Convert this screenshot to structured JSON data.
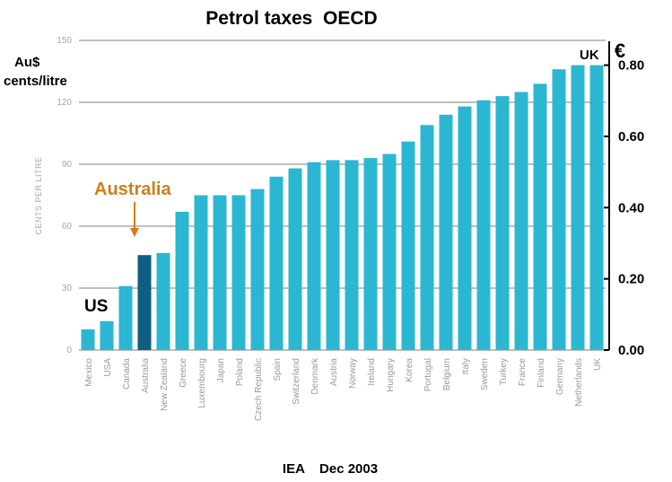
{
  "chart_data": {
    "type": "bar",
    "title": "Petrol taxes  OECD",
    "left_axis_heading": [
      "Au$",
      "cents/litre"
    ],
    "ylabel": "CENTS PER LITRE",
    "ylim": [
      0,
      150
    ],
    "yticks": [
      "0",
      "30",
      "60",
      "90",
      "120",
      "150"
    ],
    "right_axis_symbol": "€",
    "right_yticks": [
      {
        "value": 0,
        "label": "0.00"
      },
      {
        "value": 0.2,
        "label": "0.20"
      },
      {
        "value": 0.4,
        "label": "0.40"
      },
      {
        "value": 0.6,
        "label": "0.60"
      },
      {
        "value": 0.8,
        "label": "0.80"
      }
    ],
    "right_ylim": [
      0,
      0.8
    ],
    "categories": [
      "Mexico",
      "USA",
      "Canada",
      "Australia",
      "New Zealand",
      "Greece",
      "Luxembourg",
      "Japan",
      "Poland",
      "Czech Republic",
      "Spain",
      "Switzerland",
      "Denmark",
      "Austria",
      "Norway",
      "Ireland",
      "Hungary",
      "Korea",
      "Portugal",
      "Belgium",
      "Italy",
      "Sweden",
      "Turkey",
      "France",
      "Finland",
      "Germany",
      "Netherlands",
      "UK"
    ],
    "values": [
      10,
      14,
      31,
      46,
      47,
      67,
      75,
      75,
      75,
      78,
      84,
      88,
      91,
      92,
      92,
      93,
      95,
      101,
      109,
      114,
      118,
      121,
      123,
      125,
      129,
      136,
      138,
      138
    ],
    "highlight": "Australia",
    "grid": true,
    "colors": {
      "bar": "#2bb7d2",
      "highlight_bar": "#0e5f82",
      "annotation": "#d47c18",
      "grid": "#7f7f7f"
    },
    "annotations": {
      "us": "US",
      "uk": "UK",
      "australia": "Australia"
    },
    "footer": "IEA    Dec 2003"
  }
}
